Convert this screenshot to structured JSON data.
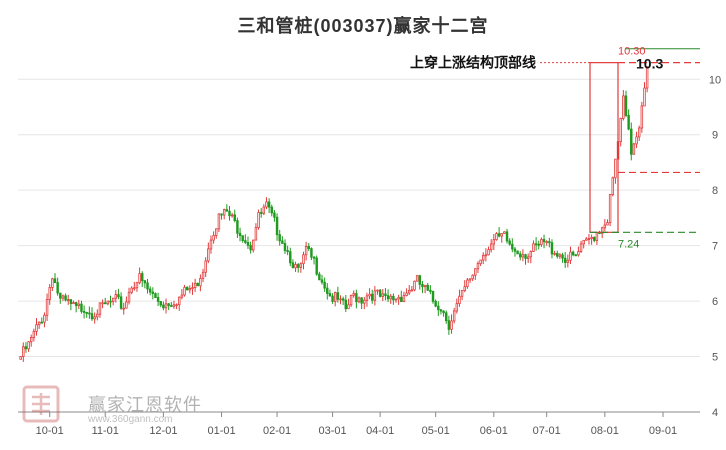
{
  "chart_data": {
    "type": "candlestick",
    "title": "三和管桩(003037)赢家十二宫",
    "x_labels": [
      "10-01",
      "11-01",
      "12-01",
      "01-01",
      "02-01",
      "03-01",
      "04-01",
      "05-01",
      "06-01",
      "07-01",
      "08-01",
      "09-01"
    ],
    "y_ticks": [
      4,
      5,
      6,
      7,
      8,
      9,
      10
    ],
    "ylim": [
      4,
      10.6
    ],
    "grid": true,
    "colors": {
      "up": "#e23b3b",
      "down": "#1e9a1e",
      "grid": "#e6e6e6",
      "resistance": "#e23b3b",
      "support": "#2a8a2a"
    },
    "annotation": {
      "label": "上穿上涨结构顶部线",
      "top_level_label": "10.30",
      "top_level": 10.3,
      "bottom_level_label": "7.24",
      "bottom_level": 7.24,
      "mid_level": 8.32,
      "current_price": "10.3"
    },
    "series_close": [
      [
        0,
        5.0
      ],
      [
        3,
        5.2
      ],
      [
        6,
        5.5
      ],
      [
        9,
        5.8
      ],
      [
        12,
        6.5
      ],
      [
        15,
        6.0
      ],
      [
        18,
        5.95
      ],
      [
        21,
        5.85
      ],
      [
        24,
        5.9
      ],
      [
        27,
        5.8
      ],
      [
        30,
        5.85
      ],
      [
        33,
        5.95
      ],
      [
        36,
        6.0
      ],
      [
        39,
        5.9
      ],
      [
        42,
        6.3
      ],
      [
        45,
        6.4
      ],
      [
        48,
        6.2
      ],
      [
        51,
        6.05
      ],
      [
        54,
        5.95
      ],
      [
        57,
        6.0
      ],
      [
        60,
        6.05
      ],
      [
        63,
        6.2
      ],
      [
        66,
        6.25
      ],
      [
        69,
        6.6
      ],
      [
        72,
        7.2
      ],
      [
        75,
        7.5
      ],
      [
        78,
        7.6
      ],
      [
        81,
        7.4
      ],
      [
        84,
        7.2
      ],
      [
        87,
        7.0
      ],
      [
        90,
        7.5
      ],
      [
        93,
        7.7
      ],
      [
        96,
        7.4
      ],
      [
        99,
        7.1
      ],
      [
        102,
        6.8
      ],
      [
        105,
        6.5
      ],
      [
        108,
        6.9
      ],
      [
        111,
        6.7
      ],
      [
        114,
        6.4
      ],
      [
        117,
        6.1
      ],
      [
        120,
        6.0
      ],
      [
        123,
        5.85
      ],
      [
        126,
        6.1
      ],
      [
        129,
        6.05
      ],
      [
        132,
        6.15
      ],
      [
        135,
        6.1
      ],
      [
        138,
        6.0
      ],
      [
        141,
        6.05
      ],
      [
        144,
        6.1
      ],
      [
        147,
        6.2
      ],
      [
        150,
        6.35
      ],
      [
        153,
        6.2
      ],
      [
        156,
        6.0
      ],
      [
        159,
        5.9
      ],
      [
        162,
        5.6
      ],
      [
        165,
        5.9
      ],
      [
        168,
        6.2
      ],
      [
        171,
        6.5
      ],
      [
        174,
        6.8
      ],
      [
        177,
        7.0
      ],
      [
        180,
        7.1
      ],
      [
        183,
        7.15
      ],
      [
        186,
        6.95
      ],
      [
        189,
        6.9
      ],
      [
        192,
        6.85
      ],
      [
        195,
        6.95
      ],
      [
        198,
        7.05
      ],
      [
        201,
        6.95
      ],
      [
        204,
        6.85
      ],
      [
        207,
        6.75
      ],
      [
        210,
        6.8
      ],
      [
        213,
        7.0
      ],
      [
        216,
        7.15
      ],
      [
        219,
        7.3
      ],
      [
        222,
        7.5
      ],
      [
        225,
        8.5
      ],
      [
        228,
        9.6
      ],
      [
        231,
        8.7
      ],
      [
        234,
        9.2
      ],
      [
        237,
        10.3
      ]
    ]
  },
  "watermark": {
    "name": "赢家江恩软件",
    "url": "www.360gann.com",
    "seal": "赢家江恩"
  }
}
